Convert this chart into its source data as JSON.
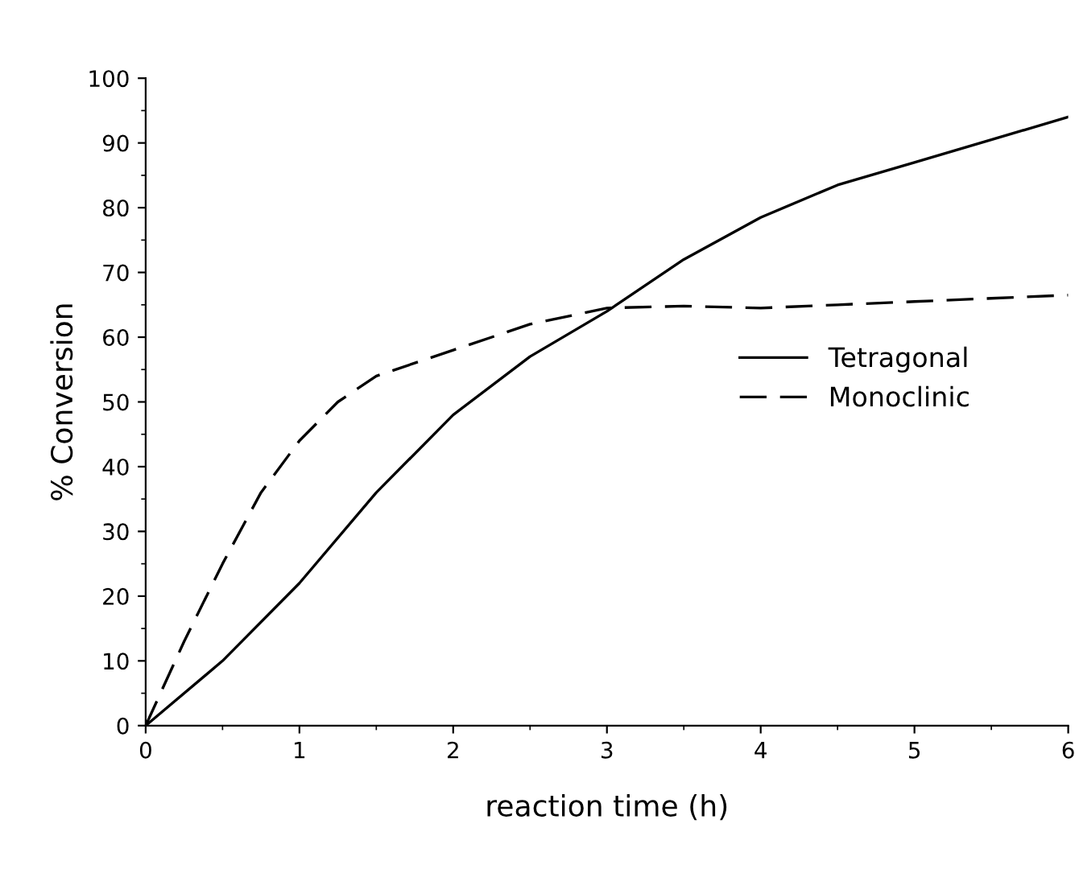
{
  "chart_data": {
    "type": "line",
    "xlabel": "reaction time (h)",
    "ylabel": "% Conversion",
    "xlim": [
      0,
      6
    ],
    "xticks": [
      0,
      1,
      2,
      3,
      4,
      5,
      6
    ],
    "ylim": [
      0,
      100
    ],
    "yticks": [
      0,
      10,
      20,
      30,
      40,
      50,
      60,
      70,
      80,
      90,
      100
    ],
    "grid": false,
    "legend": "right",
    "marker": "none",
    "series": [
      {
        "name": "Tetragonal",
        "color": "#000000",
        "line_style": "solid",
        "x": [
          0,
          0.5,
          1,
          1.5,
          2,
          2.5,
          3,
          3.5,
          4,
          4.5,
          5,
          5.5,
          6
        ],
        "values": [
          0,
          10,
          22,
          36,
          48,
          57,
          64,
          72,
          78.5,
          83.5,
          87,
          90.5,
          94
        ]
      },
      {
        "name": "Monoclinic",
        "color": "#000000",
        "line_style": "dashed",
        "x": [
          0,
          0.25,
          0.5,
          0.75,
          1,
          1.25,
          1.5,
          2,
          2.5,
          3,
          3.5,
          4,
          4.5,
          5,
          5.5,
          6
        ],
        "values": [
          0,
          13,
          25,
          36,
          44,
          50,
          54,
          58,
          62,
          64.5,
          64.8,
          64.5,
          65,
          65.5,
          66,
          66.5
        ]
      }
    ]
  }
}
